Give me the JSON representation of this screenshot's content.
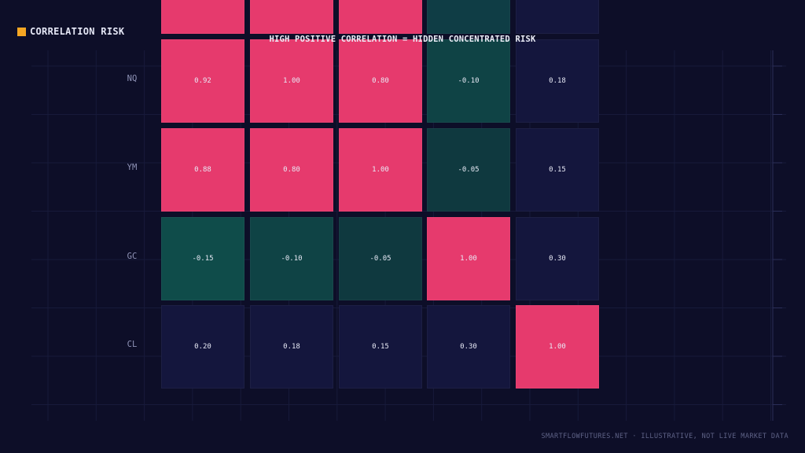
{
  "brand": {
    "label": "CORRELATION RISK"
  },
  "subtitle": "HIGH POSITIVE CORRELATION = HIDDEN CONCENTRATED RISK",
  "footer": "SMARTFLOWFUTURES.NET · ILLUSTRATIVE, NOT LIVE MARKET DATA",
  "colors": {
    "background": "#0d0e28",
    "high_positive": "#e63a6d",
    "negative": "#0f3d45",
    "neutral": "#14163d",
    "accent": "#f5a623"
  },
  "chart_data": {
    "type": "heatmap",
    "rows": [
      "",
      "NQ",
      "YM",
      "GC",
      "CL"
    ],
    "columns": 5,
    "values": [
      [
        null,
        null,
        null,
        null,
        null
      ],
      [
        0.92,
        1.0,
        0.8,
        -0.1,
        0.18
      ],
      [
        0.88,
        0.8,
        1.0,
        -0.05,
        0.15
      ],
      [
        -0.15,
        -0.1,
        -0.05,
        1.0,
        0.3
      ],
      [
        0.2,
        0.18,
        0.15,
        0.3,
        1.0
      ]
    ],
    "value_labels": [
      [
        "",
        "",
        "",
        "",
        ""
      ],
      [
        "0.92",
        "1.00",
        "0.80",
        "-0.10",
        "0.18"
      ],
      [
        "0.88",
        "0.80",
        "1.00",
        "-0.05",
        "0.15"
      ],
      [
        "-0.15",
        "-0.10",
        "-0.05",
        "1.00",
        "0.30"
      ],
      [
        "0.20",
        "0.18",
        "0.15",
        "0.30",
        "1.00"
      ]
    ],
    "top_row_fills": [
      "high",
      "high",
      "high",
      "negative",
      "neutral"
    ]
  }
}
